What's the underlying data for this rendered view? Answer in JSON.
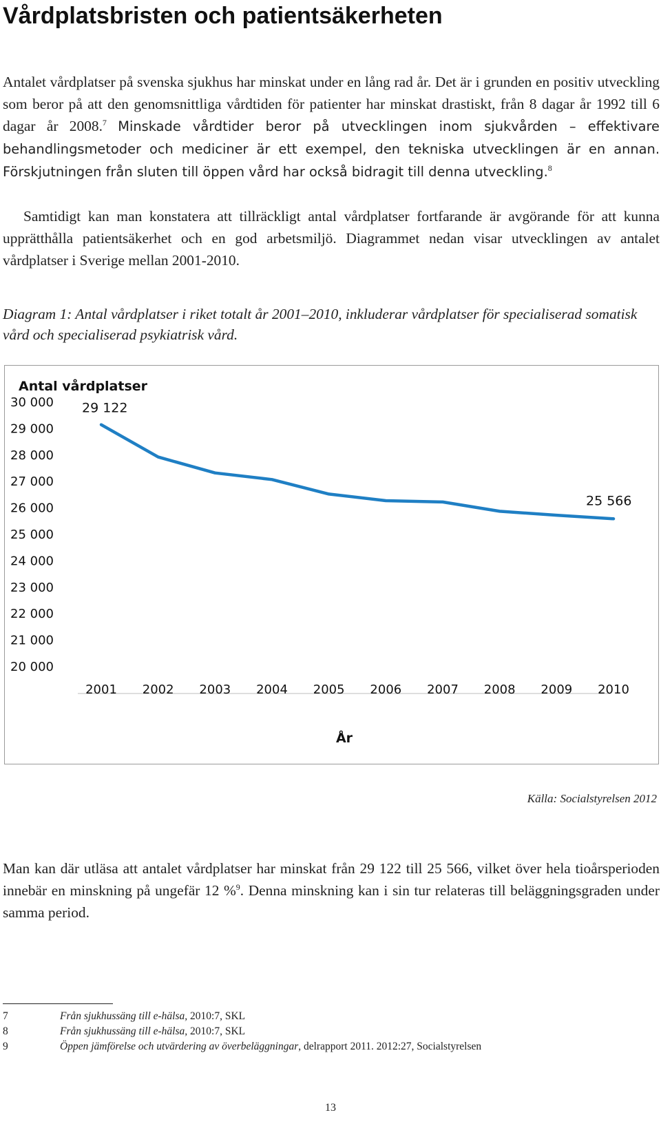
{
  "title": "Vårdplatsbristen och patientsäkerheten",
  "intro": {
    "s1": "Antalet vårdplatser på svenska sjukhus har minskat under en lång rad år. Det är i grunden en positiv utveckling som beror på att den genomsnittliga vårdtiden för patienter har minskat drastiskt, från 8 dagar år 1992 till 6 dagar år 2008.",
    "fn1": "7",
    "s2": "Minskade vårdtider beror på utvecklingen inom sjukvården – effektivare behandlingsmetoder och mediciner är ett exempel, den tekniska utvecklingen är en annan. Förskjutningen från sluten till öppen vård har också bidragit till denna utveckling.",
    "fn2": "8"
  },
  "para2": "Samtidigt kan man konstatera att tillräckligt antal vårdplatser fortfarande är avgörande för att kunna upprätthålla patientsäkerhet och en god arbetsmiljö. Diagrammet nedan visar utvecklingen av antalet vårdplatser i Sverige mellan 2001-2010.",
  "caption": "Diagram 1: Antal vårdplatser i riket totalt år 2001–2010, inkluderar vårdplatser för specialiserad somatisk vård och specialiserad psykiatrisk vård.",
  "chart_data": {
    "type": "line",
    "title": "Antal vårdplatser",
    "xlabel": "År",
    "ylabel": "",
    "x": [
      "2001",
      "2002",
      "2003",
      "2004",
      "2005",
      "2006",
      "2007",
      "2008",
      "2009",
      "2010"
    ],
    "series": [
      {
        "values": [
          29122,
          27900,
          27300,
          27050,
          26500,
          26250,
          26200,
          25850,
          25700,
          25566
        ]
      }
    ],
    "ylim": [
      20000,
      30000
    ],
    "yticks": [
      {
        "value": 30000,
        "label": "30 000"
      },
      {
        "value": 29000,
        "label": "29 000"
      },
      {
        "value": 28000,
        "label": "28 000"
      },
      {
        "value": 27000,
        "label": "27 000"
      },
      {
        "value": 26000,
        "label": "26 000"
      },
      {
        "value": 25000,
        "label": "25 000"
      },
      {
        "value": 24000,
        "label": "24 000"
      },
      {
        "value": 23000,
        "label": "23 000"
      },
      {
        "value": 22000,
        "label": "22 000"
      },
      {
        "value": 21000,
        "label": "21 000"
      },
      {
        "value": 20000,
        "label": "20 000"
      }
    ],
    "annotations": [
      {
        "x": "2001",
        "value": 29122,
        "label": "29 122"
      },
      {
        "x": "2010",
        "value": 25566,
        "label": "25 566"
      }
    ],
    "grid": false,
    "legend": "none",
    "line_color": "#1f7fc4"
  },
  "source": "Källa: Socialstyrelsen 2012",
  "para3": {
    "s1": "Man kan där utläsa att antalet vårdplatser har minskat från 29 122 till 25 566, vilket över hela tioårsperioden innebär en minskning på ungefär 12 %",
    "fn": "9",
    "s2": ". Denna minskning kan i sin tur relateras till beläggningsgraden under samma period."
  },
  "footnotes": [
    {
      "num": "7",
      "title": "Från sjukhussäng till e-hälsa,",
      "rest": " 2010:7, SKL"
    },
    {
      "num": "8",
      "title": "Från sjukhussäng till e-hälsa,",
      "rest": " 2010:7, SKL"
    },
    {
      "num": "9",
      "title": "Öppen jämförelse och utvärdering av överbeläggningar",
      "rest": ", delrapport 2011. 2012:27, Socialstyrelsen"
    }
  ],
  "page_number": "13"
}
